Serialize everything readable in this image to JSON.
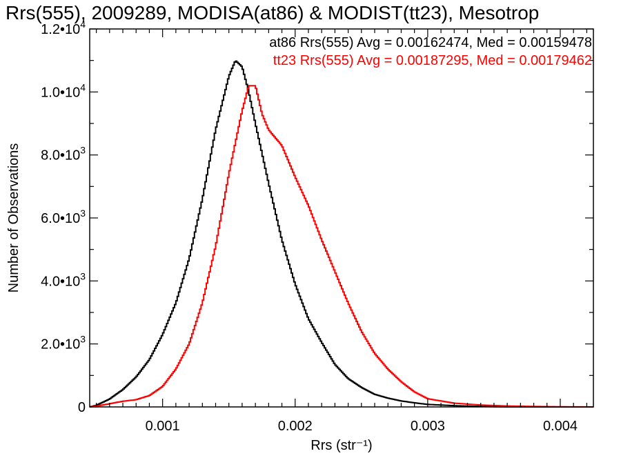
{
  "chart_data": {
    "type": "line",
    "title": "Rrs(555), 2009289, MODISA(at86) & MODIST(tt23), Mesotrop",
    "xlabel": "Rrs (str⁻¹)",
    "ylabel": "Number of Observations",
    "xlim": [
      0.00045,
      0.00425
    ],
    "ylim": [
      0,
      12000
    ],
    "x_ticks": [
      {
        "value": 0.001,
        "label": "0.001"
      },
      {
        "value": 0.002,
        "label": "0.002"
      },
      {
        "value": 0.003,
        "label": "0.003"
      },
      {
        "value": 0.004,
        "label": "0.004"
      }
    ],
    "y_ticks": [
      {
        "value": 0,
        "mant": "0",
        "exp": ""
      },
      {
        "value": 2000,
        "mant": "2.0•10",
        "exp": "3"
      },
      {
        "value": 4000,
        "mant": "4.0•10",
        "exp": "3"
      },
      {
        "value": 6000,
        "mant": "6.0•10",
        "exp": "3"
      },
      {
        "value": 8000,
        "mant": "8.0•10",
        "exp": "3"
      },
      {
        "value": 10000,
        "mant": "1.0•10",
        "exp": "4"
      },
      {
        "value": 12000,
        "mant": "1.2•10",
        "exp": "4"
      }
    ],
    "grid": false,
    "legend_position": "top-right",
    "legend": [
      {
        "text": "at86 Rrs(555) Avg = 0.00162474, Med = 0.00159478",
        "color": "#000000"
      },
      {
        "text": "tt23 Rrs(555) Avg = 0.00187295, Med = 0.00179462",
        "color": "#ff0000"
      }
    ],
    "series": [
      {
        "color": "#000000",
        "x": [
          0.00045,
          0.0005,
          0.0006,
          0.0007,
          0.0008,
          0.0009,
          0.001,
          0.0011,
          0.0012,
          0.0013,
          0.0014,
          0.0015,
          0.00155,
          0.0016,
          0.00165,
          0.0017,
          0.0018,
          0.0019,
          0.002,
          0.0021,
          0.0022,
          0.0023,
          0.0024,
          0.0025,
          0.0026,
          0.0027,
          0.0028,
          0.0029,
          0.003,
          0.0032,
          0.0034,
          0.0036,
          0.0038,
          0.004,
          0.00425
        ],
        "y": [
          0,
          50,
          250,
          550,
          950,
          1500,
          2300,
          3300,
          4700,
          6600,
          8800,
          10500,
          11000,
          10800,
          10000,
          9000,
          7100,
          5300,
          3900,
          2800,
          2050,
          1350,
          900,
          620,
          400,
          280,
          190,
          130,
          80,
          40,
          15,
          0,
          0,
          0,
          0
        ]
      },
      {
        "color": "#ff0000",
        "x": [
          0.00045,
          0.0005,
          0.0006,
          0.0007,
          0.0008,
          0.0009,
          0.001,
          0.0011,
          0.0012,
          0.0013,
          0.0014,
          0.0015,
          0.0016,
          0.00165,
          0.0017,
          0.00175,
          0.0018,
          0.0019,
          0.002,
          0.0021,
          0.0022,
          0.0023,
          0.0024,
          0.0025,
          0.0026,
          0.0027,
          0.0028,
          0.0029,
          0.003,
          0.0032,
          0.0034,
          0.0036,
          0.0038,
          0.004,
          0.00425
        ],
        "y": [
          0,
          25,
          100,
          180,
          230,
          360,
          650,
          1200,
          2000,
          3300,
          5100,
          7400,
          9400,
          10200,
          10200,
          9300,
          8800,
          8300,
          7300,
          6400,
          5300,
          4300,
          3300,
          2400,
          1700,
          1200,
          800,
          480,
          260,
          120,
          60,
          30,
          15,
          5,
          0
        ]
      }
    ]
  }
}
